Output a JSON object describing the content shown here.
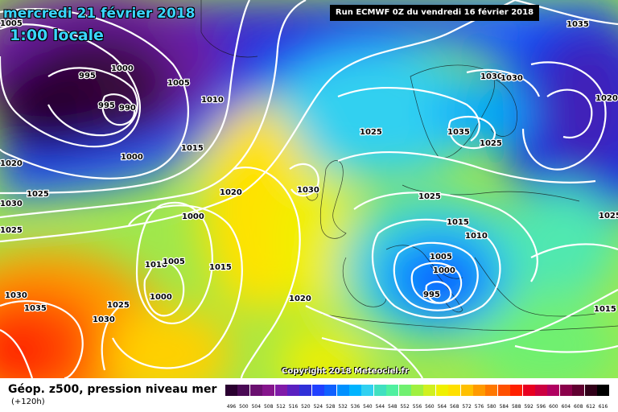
{
  "header": {
    "date_line": "mercredi 21 février 2018",
    "time_line": "1:00 locale",
    "run_info": "Run ECMWF 0Z du vendredi 16 février 2018"
  },
  "copyright": "Copyright 2018 Meteociel.fr",
  "legend": {
    "title": "Géop. z500, pression niveau mer",
    "subtitle": "(+120h)",
    "values": [
      "496",
      "500",
      "504",
      "508",
      "512",
      "516",
      "520",
      "524",
      "528",
      "532",
      "536",
      "540",
      "544",
      "548",
      "552",
      "556",
      "560",
      "564",
      "568",
      "572",
      "576",
      "580",
      "584",
      "588",
      "592",
      "596",
      "600",
      "604",
      "608",
      "612",
      "616"
    ],
    "colors": [
      "#2a0030",
      "#4a0a55",
      "#6a1070",
      "#85158c",
      "#801aa8",
      "#5a20c0",
      "#3030d8",
      "#2040ff",
      "#1060ff",
      "#0090ff",
      "#00b4ff",
      "#30d0f0",
      "#40e0c0",
      "#50f0a0",
      "#70f070",
      "#a0f040",
      "#d0f020",
      "#f0f000",
      "#ffe000",
      "#ffc000",
      "#ff9a00",
      "#ff7800",
      "#ff5000",
      "#ff2000",
      "#e80020",
      "#cc0040",
      "#b00060",
      "#8a004a",
      "#600030",
      "#300018",
      "#000000"
    ],
    "colors_note": "geopotential color scale"
  },
  "isobar_labels": [
    {
      "text": "1005"
    },
    {
      "text": "995"
    },
    {
      "text": "1000"
    },
    {
      "text": "995"
    },
    {
      "text": "990"
    },
    {
      "text": "1005"
    },
    {
      "text": "1010"
    },
    {
      "text": "1000"
    },
    {
      "text": "1015"
    },
    {
      "text": "1020"
    },
    {
      "text": "1025"
    },
    {
      "text": "1030"
    },
    {
      "text": "1025"
    },
    {
      "text": "1020"
    },
    {
      "text": "1000"
    },
    {
      "text": "1010"
    },
    {
      "text": "1005"
    },
    {
      "text": "1015"
    },
    {
      "text": "1000"
    },
    {
      "text": "1025"
    },
    {
      "text": "1030"
    },
    {
      "text": "1035"
    },
    {
      "text": "1030"
    },
    {
      "text": "1030"
    },
    {
      "text": "1025"
    },
    {
      "text": "1020"
    },
    {
      "text": "1025"
    },
    {
      "text": "1035"
    },
    {
      "text": "1030"
    },
    {
      "text": "1035"
    },
    {
      "text": "1020"
    },
    {
      "text": "1025"
    },
    {
      "text": "1015"
    },
    {
      "text": "1010"
    },
    {
      "text": "1005"
    },
    {
      "text": "1000"
    },
    {
      "text": "995"
    },
    {
      "text": "1015"
    },
    {
      "text": "1025"
    },
    {
      "text": "1030"
    }
  ]
}
